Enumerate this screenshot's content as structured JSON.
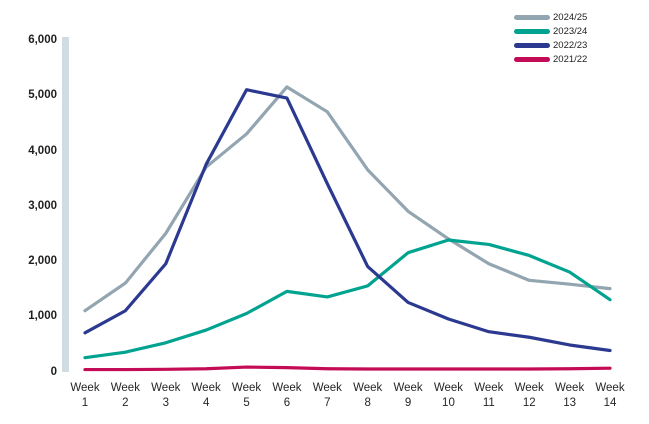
{
  "chart_data": {
    "type": "line",
    "categories": [
      "Week 1",
      "Week 2",
      "Week 3",
      "Week 4",
      "Week 5",
      "Week 6",
      "Week 7",
      "Week 8",
      "Week 9",
      "Week 10",
      "Week 11",
      "Week 12",
      "Week 13",
      "Week 14"
    ],
    "series": [
      {
        "name": "2024/25",
        "color": "#92A5B1",
        "values": [
          1100,
          1600,
          2500,
          3700,
          4300,
          5150,
          4700,
          3650,
          2900,
          2400,
          1950,
          1650,
          1580,
          1500
        ]
      },
      {
        "name": "2023/24",
        "color": "#00A390",
        "values": [
          250,
          350,
          520,
          750,
          1050,
          1450,
          1350,
          1550,
          2150,
          2380,
          2300,
          2100,
          1800,
          1300
        ]
      },
      {
        "name": "2022/23",
        "color": "#2B3990",
        "values": [
          700,
          1100,
          1950,
          3750,
          5100,
          4950,
          3400,
          1900,
          1250,
          950,
          720,
          620,
          480,
          380
        ]
      },
      {
        "name": "2021/22",
        "color": "#C40B55",
        "values": [
          35,
          35,
          40,
          50,
          80,
          70,
          50,
          45,
          45,
          45,
          45,
          45,
          50,
          60
        ]
      }
    ],
    "ytick_values": [
      0,
      1000,
      2000,
      3000,
      4000,
      5000,
      6000
    ],
    "ytick_labels": [
      "0",
      "1,000",
      "2,000",
      "3,000",
      "4,000",
      "5,000",
      "6,000"
    ],
    "ylim": [
      0,
      6000
    ],
    "grid": false,
    "legend_position": "top-right",
    "axis_bar_color": "#CFDCE0",
    "text_color": "#1F1F1F"
  }
}
